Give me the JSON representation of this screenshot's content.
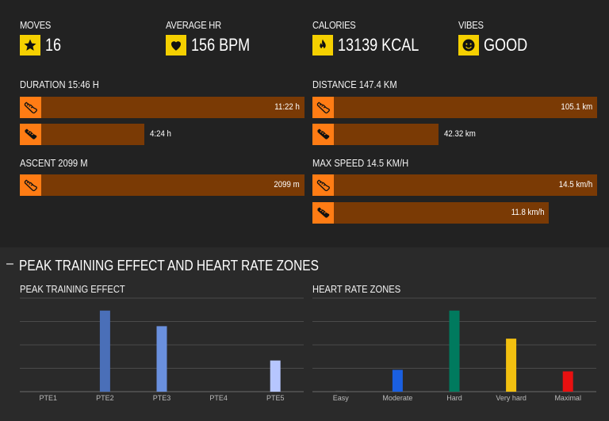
{
  "stats": {
    "moves": {
      "label": "MOVES",
      "value": "16",
      "icon": "star-icon"
    },
    "avg_hr": {
      "label": "AVERAGE HR",
      "value": "156 BPM",
      "icon": "heart-icon"
    },
    "calories": {
      "label": "CALORIES",
      "value": "13139 KCAL",
      "icon": "flame-icon"
    },
    "vibes": {
      "label": "VIBES",
      "value": "GOOD",
      "icon": "smiley-icon"
    }
  },
  "duration": {
    "label": "DURATION 15:46 H",
    "bars": [
      {
        "value": "11:22 h",
        "icon": "running-shoe-icon",
        "fraction": 1.0
      },
      {
        "value": "4:24 h",
        "icon": "hiking-boot-icon",
        "fraction": 0.43
      }
    ]
  },
  "distance": {
    "label": "DISTANCE 147.4 KM",
    "bars": [
      {
        "value": "105.1 km",
        "icon": "running-shoe-icon",
        "fraction": 1.0
      },
      {
        "value": "42.32 km",
        "icon": "hiking-boot-icon",
        "fraction": 0.44
      }
    ]
  },
  "ascent": {
    "label": "ASCENT 2099 M",
    "bars": [
      {
        "value": "2099 m",
        "icon": "running-shoe-icon",
        "fraction": 1.0
      }
    ]
  },
  "max_speed": {
    "label": "MAX SPEED 14.5 KM/H",
    "bars": [
      {
        "value": "14.5 km/h",
        "icon": "running-shoe-icon",
        "fraction": 1.0
      },
      {
        "value": "11.8 km/h",
        "icon": "hiking-boot-icon",
        "fraction": 0.83
      }
    ]
  },
  "section": {
    "collapse_symbol": "–",
    "heading": "PEAK TRAINING EFFECT AND HEART RATE ZONES"
  },
  "chart_data": [
    {
      "type": "bar",
      "title": "PEAK TRAINING EFFECT",
      "categories": [
        "PTE1",
        "PTE2",
        "PTE3",
        "PTE4",
        "PTE5"
      ],
      "values": [
        0,
        2.6,
        2.1,
        0,
        1.0
      ],
      "colors": [
        "#4a6fb8",
        "#4a6fb8",
        "#6a90de",
        "#8aa8f0",
        "#b6c6ff"
      ],
      "ylim": [
        0,
        3
      ],
      "grid": true
    },
    {
      "type": "bar",
      "title": "HEART RATE ZONES",
      "categories": [
        "Easy",
        "Moderate",
        "Hard",
        "Very hard",
        "Maximal"
      ],
      "values": [
        0.03,
        0.7,
        2.6,
        1.7,
        0.65
      ],
      "colors": [
        "#555555",
        "#1a5fe0",
        "#007a5e",
        "#f2c010",
        "#e81010"
      ],
      "ylim": [
        0,
        3
      ],
      "grid": true
    }
  ]
}
